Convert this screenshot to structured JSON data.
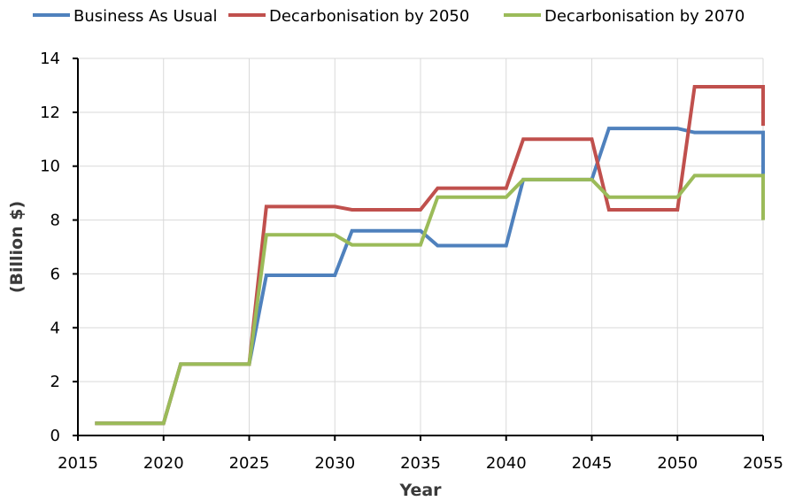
{
  "chart_data": {
    "type": "line",
    "title": "",
    "xlabel": "Year",
    "ylabel": "(Billion $)",
    "xlim": [
      2015,
      2055
    ],
    "ylim": [
      0,
      14
    ],
    "xticks": [
      2015,
      2020,
      2025,
      2030,
      2035,
      2040,
      2045,
      2050,
      2055
    ],
    "yticks": [
      0,
      2,
      4,
      6,
      8,
      10,
      12,
      14
    ],
    "grid": true,
    "legend_position": "top",
    "series": [
      {
        "name": "Business As Usual",
        "color": "#4f81bd",
        "points": [
          [
            2016,
            0.45
          ],
          [
            2020,
            0.45
          ],
          [
            2021,
            2.65
          ],
          [
            2025,
            2.65
          ],
          [
            2026,
            5.95
          ],
          [
            2030,
            5.95
          ],
          [
            2031,
            7.6
          ],
          [
            2035,
            7.6
          ],
          [
            2036,
            7.05
          ],
          [
            2040,
            7.05
          ],
          [
            2041,
            9.5
          ],
          [
            2045,
            9.5
          ],
          [
            2046,
            11.4
          ],
          [
            2050,
            11.4
          ],
          [
            2051,
            11.25
          ],
          [
            2055,
            11.25
          ],
          [
            2055,
            9.6
          ]
        ]
      },
      {
        "name": "Decarbonisation by 2050",
        "color": "#c0504d",
        "points": [
          [
            2016,
            0.45
          ],
          [
            2020,
            0.45
          ],
          [
            2021,
            2.65
          ],
          [
            2025,
            2.65
          ],
          [
            2026,
            8.5
          ],
          [
            2030,
            8.5
          ],
          [
            2031,
            8.38
          ],
          [
            2035,
            8.38
          ],
          [
            2036,
            9.18
          ],
          [
            2040,
            9.18
          ],
          [
            2041,
            11.0
          ],
          [
            2045,
            11.0
          ],
          [
            2046,
            8.38
          ],
          [
            2050,
            8.38
          ],
          [
            2051,
            12.95
          ],
          [
            2055,
            12.95
          ],
          [
            2055,
            11.5
          ]
        ]
      },
      {
        "name": "Decarbonisation by 2070",
        "color": "#9bbb59",
        "points": [
          [
            2016,
            0.45
          ],
          [
            2020,
            0.45
          ],
          [
            2021,
            2.65
          ],
          [
            2025,
            2.65
          ],
          [
            2026,
            7.45
          ],
          [
            2030,
            7.45
          ],
          [
            2031,
            7.08
          ],
          [
            2035,
            7.08
          ],
          [
            2036,
            8.85
          ],
          [
            2040,
            8.85
          ],
          [
            2041,
            9.5
          ],
          [
            2045,
            9.5
          ],
          [
            2046,
            8.85
          ],
          [
            2050,
            8.85
          ],
          [
            2051,
            9.65
          ],
          [
            2055,
            9.65
          ],
          [
            2055,
            8.0
          ]
        ]
      }
    ]
  }
}
